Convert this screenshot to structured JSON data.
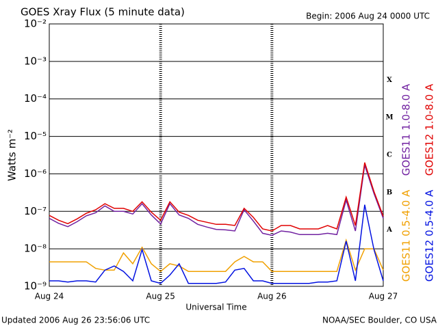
{
  "chart_data": {
    "type": "line",
    "title": "GOES Xray Flux (5 minute data)",
    "subtitle": "Begin:  2006 Aug 24 0000 UTC",
    "x_label": "Universal Time",
    "y_label": "Watts m⁻²",
    "footer_left": "Updated 2006 Aug 26 23:56:06 UTC",
    "footer_right": "NOAA/SEC Boulder, CO USA",
    "flare_classes": [
      "A",
      "B",
      "C",
      "M",
      "X"
    ],
    "yscale": "log",
    "grid": true,
    "xlim": [
      0,
      72
    ],
    "xticks": [
      {
        "value": 0,
        "label": "Aug 24"
      },
      {
        "value": 24,
        "label": "Aug 25"
      },
      {
        "value": 48,
        "label": "Aug 26"
      },
      {
        "value": 72,
        "label": "Aug 27"
      }
    ],
    "ylim": [
      1e-09,
      0.01
    ],
    "yticks": [
      {
        "value": 1e-09,
        "label": "10⁻⁹"
      },
      {
        "value": 1e-08,
        "label": "10⁻⁸"
      },
      {
        "value": 1e-07,
        "label": "10⁻⁷"
      },
      {
        "value": 1e-06,
        "label": "10⁻⁶"
      },
      {
        "value": 1e-05,
        "label": "10⁻⁵"
      },
      {
        "value": 0.0001,
        "label": "10⁻⁴"
      },
      {
        "value": 0.001,
        "label": "10⁻³"
      },
      {
        "value": 0.01,
        "label": "10⁻²"
      }
    ],
    "x": [
      0,
      2,
      4,
      6,
      8,
      10,
      12,
      14,
      16,
      18,
      20,
      22,
      24,
      26,
      28,
      30,
      32,
      34,
      36,
      38,
      40,
      42,
      44,
      46,
      48,
      50,
      52,
      54,
      56,
      58,
      60,
      62,
      64,
      66,
      68,
      70,
      72
    ],
    "series": [
      {
        "name": "GOES11 1.0-8.0 A",
        "color": "#7020a0",
        "values": [
          6.5e-08,
          4.8e-08,
          3.9e-08,
          5.3e-08,
          7.6e-08,
          9.2e-08,
          1.4e-07,
          1e-07,
          1e-07,
          8.5e-08,
          1.6e-07,
          8e-08,
          4.6e-08,
          1.6e-07,
          8e-08,
          6.5e-08,
          4.5e-08,
          3.8e-08,
          3.3e-08,
          3.2e-08,
          3e-08,
          1.1e-07,
          5.5e-08,
          2.6e-08,
          2.3e-08,
          3e-08,
          2.8e-08,
          2.4e-08,
          2.4e-08,
          2.4e-08,
          2.6e-08,
          2.4e-08,
          2e-07,
          3e-08,
          1.7e-06,
          3e-07,
          6.5e-08
        ]
      },
      {
        "name": "GOES12 1.0-8.0 A",
        "color": "#e00000",
        "values": [
          7.8e-08,
          5.8e-08,
          4.7e-08,
          6.3e-08,
          8.9e-08,
          1.1e-07,
          1.6e-07,
          1.2e-07,
          1.2e-07,
          1e-07,
          1.8e-07,
          9.5e-08,
          5.8e-08,
          1.8e-07,
          9.5e-08,
          7.8e-08,
          5.8e-08,
          5.1e-08,
          4.5e-08,
          4.5e-08,
          4.2e-08,
          1.2e-07,
          6.9e-08,
          3.4e-08,
          3e-08,
          4.2e-08,
          4.2e-08,
          3.4e-08,
          3.4e-08,
          3.4e-08,
          4.2e-08,
          3.4e-08,
          2.4e-07,
          4.2e-08,
          2e-06,
          3.4e-07,
          7.4e-08
        ]
      },
      {
        "name": "GOES11 0.5-4.0 A",
        "color": "#f0a000",
        "values": [
          4.5e-09,
          4.5e-09,
          4.5e-09,
          4.5e-09,
          4.5e-09,
          3e-09,
          2.7e-09,
          2.7e-09,
          7.8e-09,
          4e-09,
          1.1e-08,
          4e-09,
          2.5e-09,
          4e-09,
          3.5e-09,
          2.5e-09,
          2.5e-09,
          2.5e-09,
          2.5e-09,
          2.5e-09,
          4.5e-09,
          6.3e-09,
          4.5e-09,
          4.5e-09,
          2.5e-09,
          2.5e-09,
          2.5e-09,
          2.5e-09,
          2.5e-09,
          2.5e-09,
          2.5e-09,
          2.5e-09,
          1.7e-08,
          2.7e-09,
          1e-08,
          1e-08,
          2.7e-09
        ]
      },
      {
        "name": "GOES12 0.5-4.0 A",
        "color": "#0010e0",
        "values": [
          1.4e-09,
          1.4e-09,
          1.3e-09,
          1.4e-09,
          1.4e-09,
          1.3e-09,
          2.7e-09,
          3.5e-09,
          2.5e-09,
          1.4e-09,
          9.6e-09,
          1.4e-09,
          1.2e-09,
          2e-09,
          4e-09,
          1.2e-09,
          1.2e-09,
          1.2e-09,
          1.2e-09,
          1.3e-09,
          2.7e-09,
          3e-09,
          1.4e-09,
          1.4e-09,
          1.2e-09,
          1.2e-09,
          1.2e-09,
          1.2e-09,
          1.2e-09,
          1.3e-09,
          1.3e-09,
          1.4e-09,
          1.6e-08,
          1.4e-09,
          1.5e-07,
          9.6e-09,
          1.4e-09
        ]
      }
    ]
  }
}
